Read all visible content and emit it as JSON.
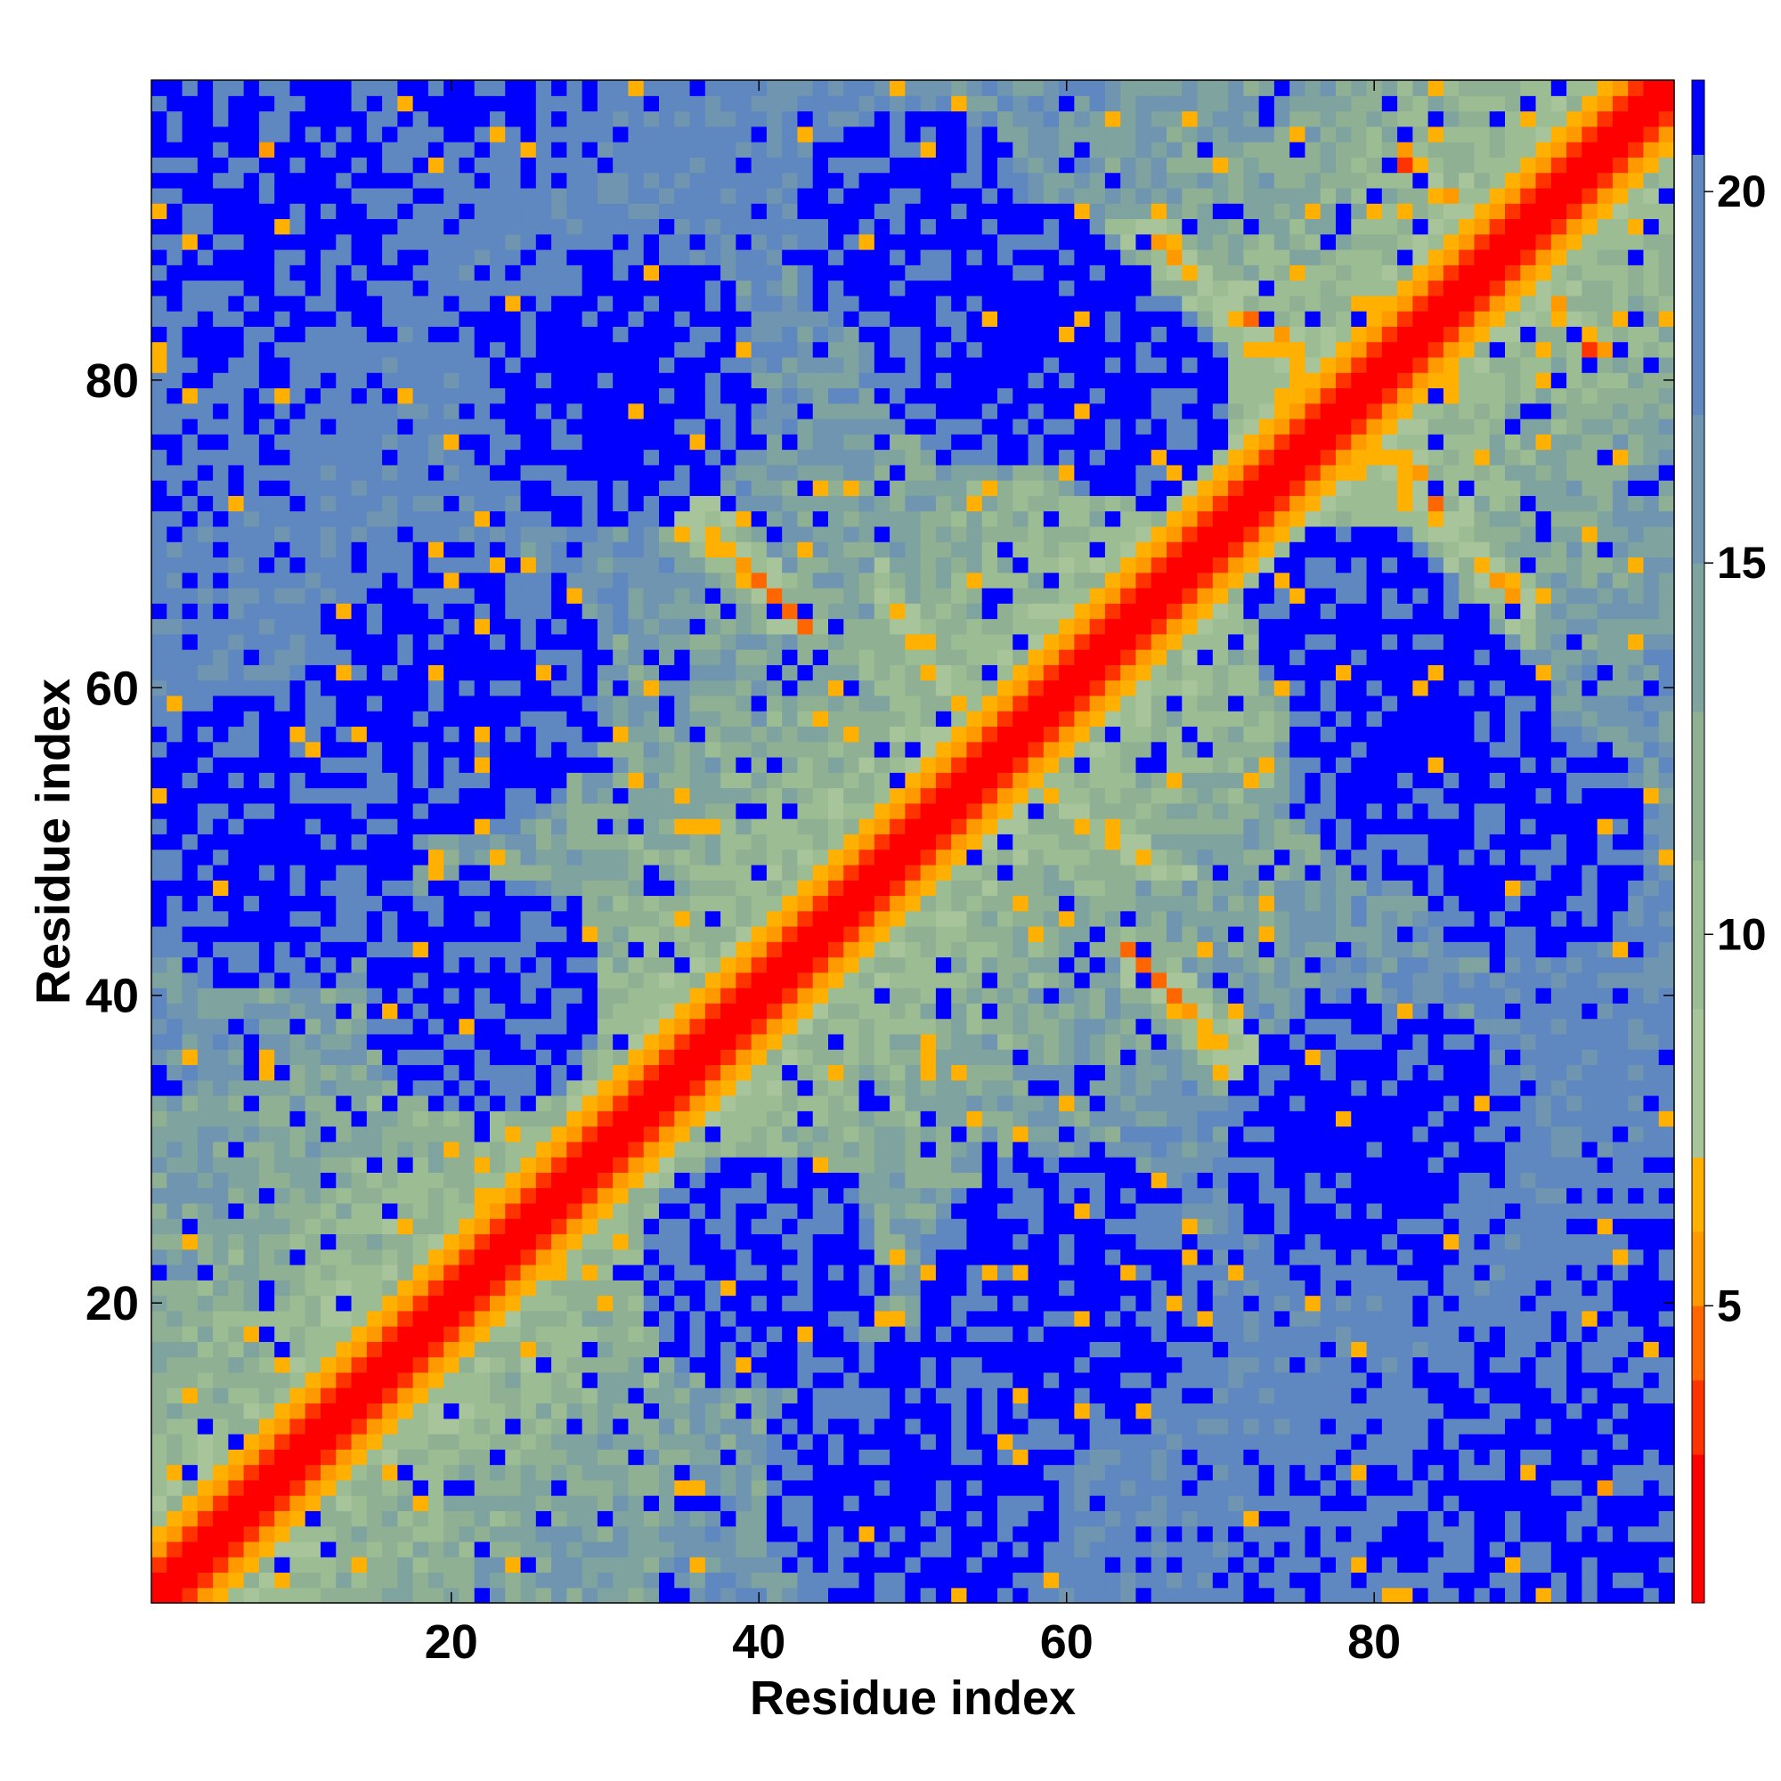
{
  "chart_data": {
    "type": "heatmap",
    "title": "",
    "xlabel": "Residue index",
    "ylabel": "Residue index",
    "n_residues": 99,
    "xlim": [
      1,
      99
    ],
    "ylim": [
      1,
      99
    ],
    "x_ticks": [
      20,
      40,
      60,
      80
    ],
    "y_ticks": [
      20,
      40,
      60,
      80
    ],
    "colorbar": {
      "range": [
        1,
        21.5
      ],
      "ticks": [
        5,
        10,
        15,
        20
      ],
      "colors": [
        "#ff0000",
        "#ff3300",
        "#ff6600",
        "#ff9900",
        "#ffb000",
        "#a8c49a",
        "#9cbc93",
        "#8fb093",
        "#7fa39e",
        "#6f95b0",
        "#5f87c0",
        "#0000ff"
      ],
      "boundaries": [
        1,
        3,
        4,
        5,
        6,
        7,
        9,
        11,
        13,
        15,
        17,
        20.5,
        21.5
      ]
    },
    "description_values": {
      "diagonal": "distance ~1-4 along i=j band",
      "saturated": 21.5
    },
    "secondary_structure": {
      "diagonal_bands": [
        [
          1,
          99
        ]
      ],
      "antiparallel_pairs": [
        {
          "i": [
            33,
            41
          ],
          "j": [
            75,
            66
          ],
          "d": 6
        },
        {
          "i": [
            48,
            55
          ],
          "j": [
            66,
            56
          ],
          "d": 6
        },
        {
          "i": [
            64,
            74
          ],
          "j": [
            43,
            32
          ],
          "d": 6
        },
        {
          "i": [
            78,
            90
          ],
          "j": [
            77,
            65
          ],
          "d": 6
        },
        {
          "i": [
            82,
            91
          ],
          "j": [
            94,
            86
          ],
          "d": 6
        },
        {
          "i": [
            69,
            77
          ],
          "j": [
            86,
            80
          ],
          "d": 6
        }
      ],
      "contact_patches": [
        {
          "i": 46,
          "j": 25,
          "r": 9,
          "d": 22
        },
        {
          "i": 22,
          "j": 40,
          "r": 8,
          "d": 22
        },
        {
          "i": 56,
          "j": 83,
          "r": 9,
          "d": 22
        },
        {
          "i": 83,
          "j": 57,
          "r": 8,
          "d": 22
        },
        {
          "i": 64,
          "j": 79,
          "r": 7,
          "d": 22
        },
        {
          "i": 58,
          "j": 20,
          "r": 10,
          "d": 22
        },
        {
          "i": 80,
          "j": 30,
          "r": 10,
          "d": 22
        },
        {
          "i": 30,
          "j": 80,
          "r": 10,
          "d": 22
        },
        {
          "i": 20,
          "j": 60,
          "r": 10,
          "d": 22
        },
        {
          "i": 8,
          "j": 50,
          "r": 10,
          "d": 22
        },
        {
          "i": 50,
          "j": 8,
          "r": 10,
          "d": 22
        },
        {
          "i": 90,
          "j": 50,
          "r": 8,
          "d": 22
        },
        {
          "i": 50,
          "j": 90,
          "r": 8,
          "d": 22
        },
        {
          "i": 90,
          "j": 10,
          "r": 10,
          "d": 22
        },
        {
          "i": 10,
          "j": 90,
          "r": 8,
          "d": 22
        }
      ]
    }
  }
}
